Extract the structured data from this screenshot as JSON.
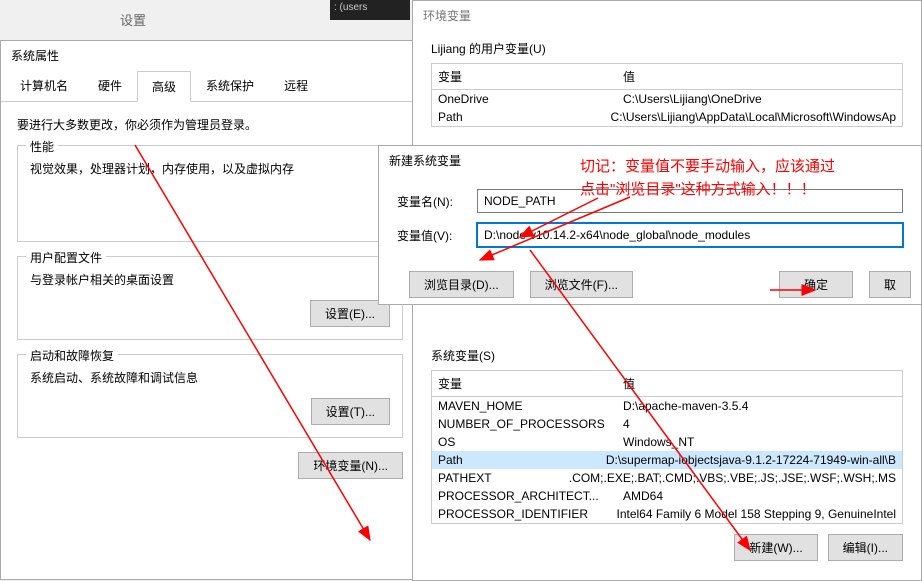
{
  "settings_label": "设置",
  "dark_snippet": ": (users",
  "sysprops": {
    "title": "系统属性",
    "tabs": [
      "计算机名",
      "硬件",
      "高级",
      "系统保护",
      "远程"
    ],
    "active_tab": 2,
    "notice": "要进行大多数更改，你必须作为管理员登录。",
    "groups": [
      {
        "title": "性能",
        "text": "视觉效果，处理器计划，内存使用，以及虚拟内存"
      },
      {
        "title": "用户配置文件",
        "text": "与登录帐户相关的桌面设置"
      },
      {
        "title": "启动和故障恢复",
        "text": "系统启动、系统故障和调试信息"
      }
    ],
    "settings_btn_e": "设置(E)...",
    "settings_btn_t": "设置(T)...",
    "env_btn": "环境变量(N)..."
  },
  "envvars": {
    "title": "环境变量",
    "user_section": "Lijiang 的用户变量(U)",
    "sys_section": "系统变量(S)",
    "col_var": "变量",
    "col_val": "值",
    "user_rows": [
      {
        "var": "OneDrive",
        "val": "C:\\Users\\Lijiang\\OneDrive"
      },
      {
        "var": "Path",
        "val": "C:\\Users\\Lijiang\\AppData\\Local\\Microsoft\\WindowsAp"
      }
    ],
    "sys_rows": [
      {
        "var": "MAVEN_HOME",
        "val": "D:\\apache-maven-3.5.4"
      },
      {
        "var": "NUMBER_OF_PROCESSORS",
        "val": "4"
      },
      {
        "var": "OS",
        "val": "Windows_NT"
      },
      {
        "var": "Path",
        "val": "D:\\supermap-iobjectsjava-9.1.2-17224-71949-win-all\\B",
        "sel": true
      },
      {
        "var": "PATHEXT",
        "val": ".COM;.EXE;.BAT;.CMD;.VBS;.VBE;.JS;.JSE;.WSF;.WSH;.MS"
      },
      {
        "var": "PROCESSOR_ARCHITECT...",
        "val": "AMD64"
      },
      {
        "var": "PROCESSOR_IDENTIFIER",
        "val": "Intel64 Family 6 Model 158 Stepping 9, GenuineIntel"
      }
    ],
    "new_btn": "新建(W)...",
    "edit_btn": "编辑(I)..."
  },
  "newvar": {
    "title": "新建系统变量",
    "name_label": "变量名(N):",
    "value_label": "变量值(V):",
    "name_value": "NODE_PATH",
    "value_value": "D:\\node-v10.14.2-x64\\node_global\\node_modules",
    "browse_dir": "浏览目录(D)...",
    "browse_file": "浏览文件(F)...",
    "ok": "确定",
    "cancel": "取"
  },
  "annotation": {
    "line1": "切记：变量值不要手动输入，应该通过",
    "line2": "点击\"浏览目录\"这种方式输入！！！"
  },
  "colors": {
    "annot": "#ff0000",
    "highlight": "#cce8ff"
  }
}
